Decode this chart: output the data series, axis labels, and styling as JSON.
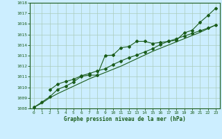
{
  "title": "Graphe pression niveau de la mer (hPa)",
  "bg_color": "#cceeff",
  "grid_color": "#aaccbb",
  "line_color": "#1a5c1a",
  "xlim": [
    -0.5,
    23.5
  ],
  "ylim": [
    1008,
    1018
  ],
  "yticks": [
    1008,
    1009,
    1010,
    1011,
    1012,
    1013,
    1014,
    1015,
    1016,
    1017,
    1018
  ],
  "xticks": [
    0,
    1,
    2,
    3,
    4,
    5,
    6,
    7,
    8,
    9,
    10,
    11,
    12,
    13,
    14,
    15,
    16,
    17,
    18,
    19,
    20,
    21,
    22,
    23
  ],
  "series1_x": [
    0,
    1,
    2,
    3,
    4,
    5,
    6,
    7,
    8,
    9,
    10,
    11,
    12,
    13,
    14,
    15,
    16,
    17,
    18,
    19,
    20,
    21,
    22,
    23
  ],
  "series1_y": [
    1008.1,
    1008.6,
    1009.1,
    1009.8,
    1010.1,
    1010.5,
    1011.05,
    1011.15,
    1011.15,
    1013.0,
    1013.05,
    1013.75,
    1013.85,
    1014.35,
    1014.35,
    1014.15,
    1014.25,
    1014.35,
    1014.45,
    1015.15,
    1015.4,
    1016.15,
    1016.8,
    1017.5
  ],
  "series2_x": [
    2,
    3,
    4,
    5,
    6,
    7,
    8,
    9,
    10,
    11,
    12,
    13,
    14,
    15,
    16,
    17,
    18,
    19,
    20,
    21,
    22,
    23
  ],
  "series2_y": [
    1009.75,
    1010.3,
    1010.55,
    1010.75,
    1011.1,
    1011.3,
    1011.55,
    1011.75,
    1012.15,
    1012.5,
    1012.8,
    1013.05,
    1013.35,
    1013.65,
    1014.05,
    1014.35,
    1014.6,
    1014.85,
    1015.1,
    1015.35,
    1015.6,
    1015.9
  ],
  "series3_x": [
    0,
    1,
    2,
    3,
    4,
    5,
    6,
    7,
    8,
    9,
    10,
    11,
    12,
    13,
    14,
    15,
    16,
    17,
    18,
    19,
    20,
    21,
    22,
    23
  ],
  "series3_y": [
    1008.1,
    1008.5,
    1009.0,
    1009.4,
    1009.75,
    1010.1,
    1010.45,
    1010.8,
    1011.1,
    1011.4,
    1011.7,
    1012.0,
    1012.35,
    1012.7,
    1013.05,
    1013.4,
    1013.7,
    1014.0,
    1014.3,
    1014.6,
    1014.9,
    1015.2,
    1015.55,
    1015.9
  ]
}
